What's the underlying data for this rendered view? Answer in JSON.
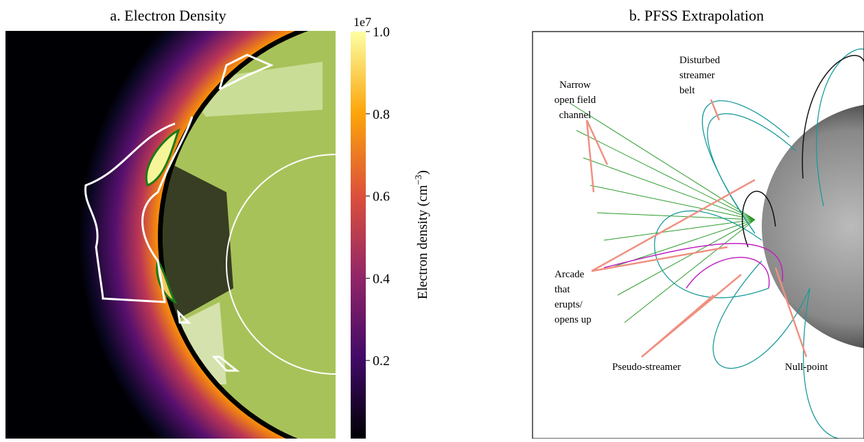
{
  "panels": [
    {
      "title": "a. Electron Density"
    },
    {
      "title": "b. PFSS Extrapolation",
      "annotations": [
        {
          "lines": [
            "Disturbed",
            "streamer",
            "belt"
          ]
        },
        {
          "lines": [
            "Narrow",
            "open field",
            "channel"
          ]
        },
        {
          "lines": [
            "Arcade",
            "that",
            "erupts/",
            "opens up"
          ]
        },
        {
          "lines": [
            "Pseudo-streamer"
          ]
        },
        {
          "lines": [
            "Null-point"
          ]
        }
      ]
    }
  ],
  "colorbar": {
    "label": "Electron density (cm",
    "label_superscript": "−3",
    "label_end": ")",
    "offset_label": "1e7",
    "lim": [
      0.01,
      1.0
    ],
    "ticks": [
      0.2,
      0.4,
      0.6,
      0.8,
      {
        "value": 1.0,
        "label": "1.0"
      }
    ]
  }
}
